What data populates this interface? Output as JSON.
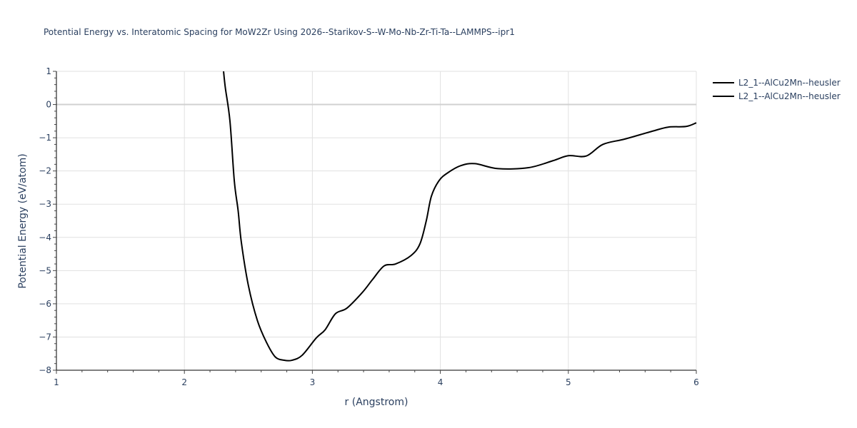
{
  "chart_data": {
    "type": "line",
    "title": "Potential Energy vs. Interatomic Spacing for MoW2Zr Using 2026--Starikov-S--W-Mo-Nb-Zr-Ti-Ta--LAMMPS--ipr1",
    "xlabel": "r (Angstrom)",
    "ylabel": "Potential Energy (eV/atom)",
    "xlim": [
      1,
      6
    ],
    "ylim": [
      -8,
      1
    ],
    "x_ticks": [
      1,
      2,
      3,
      4,
      5,
      6
    ],
    "y_ticks": [
      1,
      0,
      -1,
      -2,
      -3,
      -4,
      -5,
      -6,
      -7,
      -8
    ],
    "x_tick_labels": [
      "1",
      "2",
      "3",
      "4",
      "5",
      "6"
    ],
    "y_tick_labels": [
      "1",
      "0",
      "−1",
      "−2",
      "−3",
      "−4",
      "−5",
      "−6",
      "−7",
      "−8"
    ],
    "grid": true,
    "legend_position": "top-right-outside",
    "series": [
      {
        "name": "L2_1--AlCu2Mn--heusler",
        "color": "#000000",
        "x": [
          2.306,
          2.32,
          2.356,
          2.39,
          2.42,
          2.445,
          2.5,
          2.57,
          2.64,
          2.71,
          2.78,
          2.84,
          2.92,
          3.03,
          3.1,
          3.18,
          3.27,
          3.39,
          3.47,
          3.56,
          3.65,
          3.77,
          3.84,
          3.89,
          3.93,
          3.99,
          4.06,
          4.16,
          4.27,
          4.45,
          4.69,
          4.88,
          5.0,
          5.14,
          5.27,
          5.44,
          5.65,
          5.78,
          5.92,
          6.0
        ],
        "y": [
          1.0,
          0.5,
          -0.5,
          -2.3,
          -3.2,
          -4.15,
          -5.45,
          -6.5,
          -7.15,
          -7.6,
          -7.7,
          -7.7,
          -7.55,
          -7.03,
          -6.78,
          -6.3,
          -6.13,
          -5.66,
          -5.27,
          -4.86,
          -4.8,
          -4.55,
          -4.2,
          -3.5,
          -2.76,
          -2.29,
          -2.05,
          -1.84,
          -1.78,
          -1.93,
          -1.9,
          -1.69,
          -1.54,
          -1.55,
          -1.2,
          -1.04,
          -0.81,
          -0.68,
          -0.66,
          -0.55
        ]
      },
      {
        "name": "L2_1--AlCu2Mn--heusler",
        "color": "#000000",
        "x": [],
        "y": []
      }
    ]
  },
  "legend": {
    "items": [
      {
        "label": "L2_1--AlCu2Mn--heusler",
        "color": "#000000"
      },
      {
        "label": "L2_1--AlCu2Mn--heusler",
        "color": "#000000"
      }
    ]
  },
  "colors": {
    "axis_text": "#2a3f5f",
    "grid": "#e1e1e1",
    "zero_line": "#d0d0d0",
    "line": "#000000"
  }
}
